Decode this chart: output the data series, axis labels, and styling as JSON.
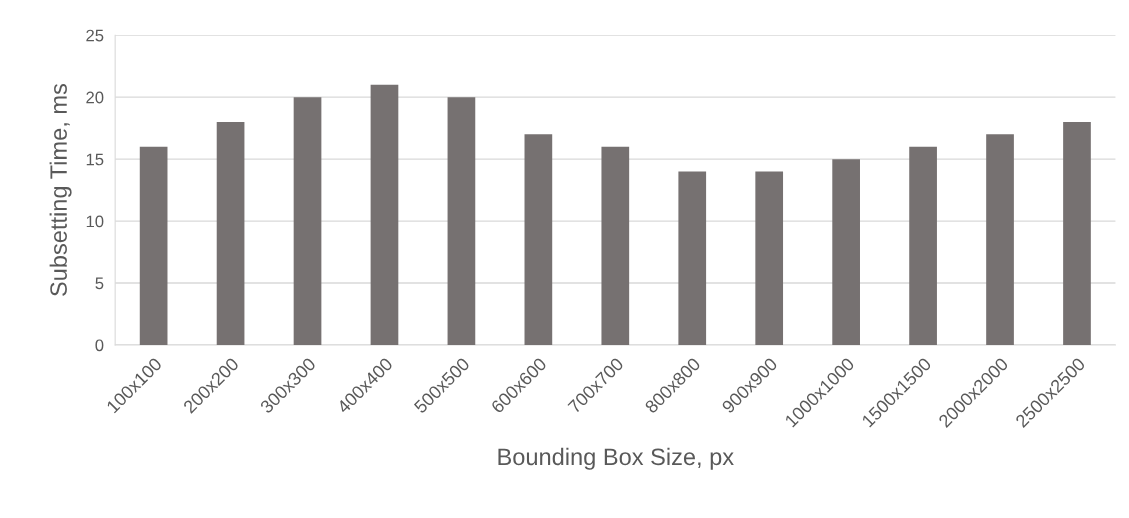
{
  "chart_data": {
    "type": "bar",
    "xlabel": "Bounding Box Size, px",
    "ylabel": "Subsetting Time, ms",
    "categories": [
      "100x100",
      "200x200",
      "300x300",
      "400x400",
      "500x500",
      "600x600",
      "700x700",
      "800x800",
      "900x900",
      "1000x1000",
      "1500x1500",
      "2000x2000",
      "2500x2500"
    ],
    "values": [
      16,
      18,
      20,
      21,
      20,
      17,
      16,
      14,
      14,
      15,
      16,
      17,
      18
    ],
    "color": "#767171",
    "ylim": [
      0,
      25
    ],
    "yticks": [
      0,
      5,
      10,
      15,
      20,
      25
    ],
    "grid": "y",
    "legend": false
  }
}
